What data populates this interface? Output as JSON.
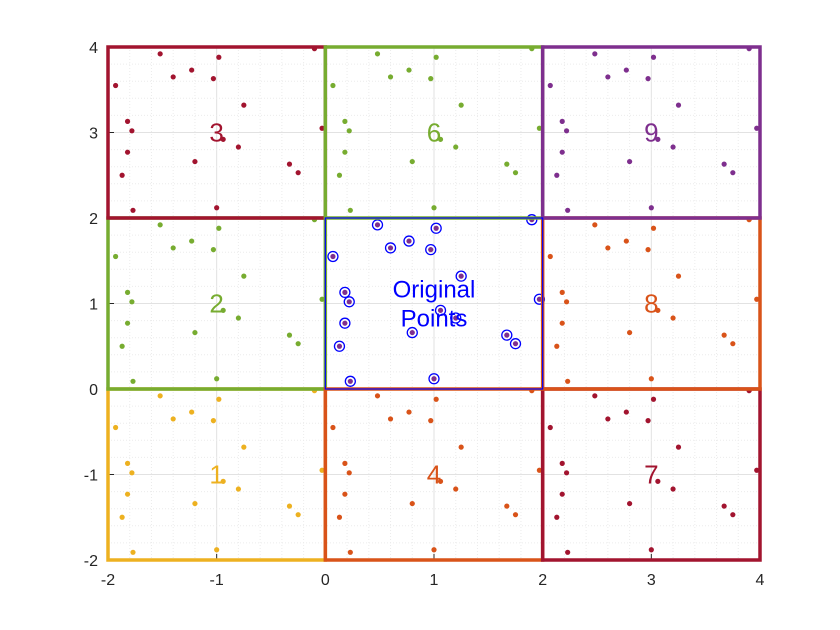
{
  "chart_data": {
    "type": "scatter",
    "xlim": [
      -2,
      4
    ],
    "ylim": [
      -2,
      4
    ],
    "x_ticks": [
      "-2",
      "-1",
      "0",
      "1",
      "2",
      "3",
      "4"
    ],
    "y_ticks": [
      "-2",
      "-1",
      "0",
      "1",
      "2",
      "3",
      "4"
    ],
    "grid": "minor dotted",
    "colors": {
      "original": "#0000ff",
      "yellow": "#edb120",
      "orange": "#d95319",
      "green": "#77ac30",
      "red": "#a2142f",
      "purple": "#7e2f8e"
    },
    "original_points": [
      [
        0.07,
        1.55
      ],
      [
        0.22,
        1.02
      ],
      [
        0.48,
        1.92
      ],
      [
        0.18,
        1.13
      ],
      [
        0.6,
        1.65
      ],
      [
        0.77,
        1.73
      ],
      [
        0.18,
        0.77
      ],
      [
        0.13,
        0.5
      ],
      [
        0.8,
        0.66
      ],
      [
        0.97,
        1.63
      ],
      [
        1.02,
        1.88
      ],
      [
        1.25,
        1.32
      ],
      [
        1.06,
        0.92
      ],
      [
        1.2,
        0.83
      ],
      [
        1.97,
        1.05
      ],
      [
        1.67,
        0.63
      ],
      [
        1.9,
        1.98
      ],
      [
        1.75,
        0.53
      ],
      [
        0.23,
        0.09
      ],
      [
        1.0,
        0.12
      ]
    ],
    "regions": [
      {
        "label": "1",
        "color": "#edb120",
        "x": [
          -2,
          0
        ],
        "y": [
          -2,
          0
        ]
      },
      {
        "label": "2",
        "color": "#77ac30",
        "x": [
          -2,
          0
        ],
        "y": [
          0,
          2
        ]
      },
      {
        "label": "3",
        "color": "#a2142f",
        "x": [
          -2,
          0
        ],
        "y": [
          2,
          4
        ]
      },
      {
        "label": "4",
        "color": "#d95319",
        "x": [
          0,
          2
        ],
        "y": [
          -2,
          0
        ]
      },
      {
        "label": "6",
        "color": "#77ac30",
        "x": [
          0,
          2
        ],
        "y": [
          2,
          4
        ]
      },
      {
        "label": "7",
        "color": "#a2142f",
        "x": [
          2,
          4
        ],
        "y": [
          -2,
          0
        ]
      },
      {
        "label": "8",
        "color": "#d95319",
        "x": [
          2,
          4
        ],
        "y": [
          0,
          2
        ]
      },
      {
        "label": "9",
        "color": "#7e2f8e",
        "x": [
          2,
          4
        ],
        "y": [
          2,
          4
        ]
      }
    ],
    "center_region": {
      "label": [
        "Original",
        "Points"
      ],
      "color": "#0000ff",
      "x": [
        0,
        2
      ],
      "y": [
        0,
        2
      ]
    }
  }
}
